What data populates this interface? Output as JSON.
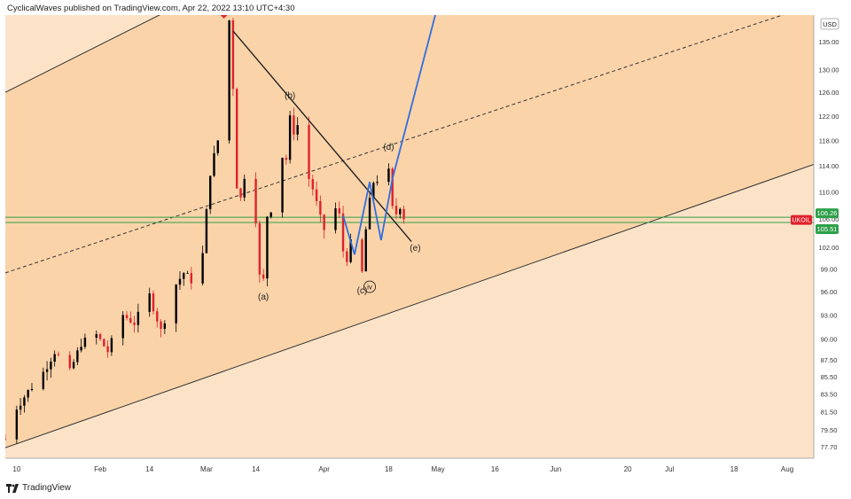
{
  "header": {
    "publisher": "CyclicalWaves published on TradingView.com, Apr 22, 2022 13:10 UTC+4:30"
  },
  "footer": {
    "brand": "TradingView"
  },
  "chart_data": {
    "type": "candlestick",
    "symbol_label": "UKOIL",
    "currency": "USD",
    "y_scale": "log",
    "ylim": [
      76.5,
      140.0
    ],
    "xlim": [
      "2022-01-07",
      "2022-08-08"
    ],
    "price_tags": {
      "upper": "106.26",
      "lower": "105.51"
    },
    "x_ticks": [
      {
        "date": "2022-01-10",
        "label": "10"
      },
      {
        "date": "2022-02-01",
        "label": "Feb"
      },
      {
        "date": "2022-02-14",
        "label": "14"
      },
      {
        "date": "2022-03-01",
        "label": "Mar"
      },
      {
        "date": "2022-03-14",
        "label": "14"
      },
      {
        "date": "2022-04-01",
        "label": "Apr"
      },
      {
        "date": "2022-04-18",
        "label": "18"
      },
      {
        "date": "2022-05-01",
        "label": "May"
      },
      {
        "date": "2022-05-16",
        "label": "16"
      },
      {
        "date": "2022-06-01",
        "label": "Jun"
      },
      {
        "date": "2022-06-20",
        "label": "20"
      },
      {
        "date": "2022-07-01",
        "label": "Jul"
      },
      {
        "date": "2022-07-18",
        "label": "18"
      },
      {
        "date": "2022-08-01",
        "label": "Aug"
      }
    ],
    "y_ticks": [
      "77.70",
      "79.50",
      "81.50",
      "83.50",
      "85.50",
      "87.50",
      "90.00",
      "93.00",
      "96.00",
      "99.00",
      "102.00",
      "106.00",
      "110.00",
      "114.00",
      "118.00",
      "122.00",
      "126.00",
      "130.00",
      "135.00"
    ],
    "price_path": [
      {
        "date": "2022-01-07",
        "price": 78.5
      },
      {
        "date": "2022-01-10",
        "price": 82.0
      },
      {
        "date": "2022-01-13",
        "price": 83.8
      },
      {
        "date": "2022-01-17",
        "price": 86.0
      },
      {
        "date": "2022-01-20",
        "price": 88.5
      },
      {
        "date": "2022-01-24",
        "price": 86.0
      },
      {
        "date": "2022-01-27",
        "price": 89.5
      },
      {
        "date": "2022-01-31",
        "price": 90.5
      },
      {
        "date": "2022-02-03",
        "price": 88.5
      },
      {
        "date": "2022-02-07",
        "price": 93.0
      },
      {
        "date": "2022-02-10",
        "price": 92.0
      },
      {
        "date": "2022-02-14",
        "price": 95.5
      },
      {
        "date": "2022-02-17",
        "price": 91.0
      },
      {
        "date": "2022-02-21",
        "price": 97.0
      },
      {
        "date": "2022-02-23",
        "price": 98.5
      },
      {
        "date": "2022-02-25",
        "price": 97.5
      },
      {
        "date": "2022-02-28",
        "price": 101.0
      },
      {
        "date": "2022-03-02",
        "price": 113.0
      },
      {
        "date": "2022-03-04",
        "price": 118.0
      },
      {
        "date": "2022-03-07",
        "price": 139.0
      },
      {
        "date": "2022-03-08",
        "price": 127.0
      },
      {
        "date": "2022-03-09",
        "price": 111.0
      },
      {
        "date": "2022-03-10",
        "price": 109.0
      },
      {
        "date": "2022-03-11",
        "price": 112.5
      },
      {
        "date": "2022-03-14",
        "price": 106.0
      },
      {
        "date": "2022-03-15",
        "price": 98.0
      },
      {
        "date": "2022-03-16",
        "price": 97.5
      },
      {
        "date": "2022-03-17",
        "price": 106.5
      },
      {
        "date": "2022-03-18",
        "price": 107.5
      },
      {
        "date": "2022-03-21",
        "price": 115.5
      },
      {
        "date": "2022-03-22",
        "price": 115.0
      },
      {
        "date": "2022-03-23",
        "price": 121.5
      },
      {
        "date": "2022-03-24",
        "price": 119.5
      },
      {
        "date": "2022-03-25",
        "price": 120.5
      },
      {
        "date": "2022-03-28",
        "price": 112.0
      },
      {
        "date": "2022-03-29",
        "price": 110.5
      },
      {
        "date": "2022-03-31",
        "price": 106.0
      },
      {
        "date": "2022-04-01",
        "price": 104.5
      },
      {
        "date": "2022-04-04",
        "price": 107.5
      },
      {
        "date": "2022-04-05",
        "price": 106.5
      },
      {
        "date": "2022-04-06",
        "price": 101.5
      },
      {
        "date": "2022-04-07",
        "price": 100.5
      },
      {
        "date": "2022-04-08",
        "price": 102.5
      },
      {
        "date": "2022-04-11",
        "price": 98.5
      },
      {
        "date": "2022-04-12",
        "price": 104.5
      },
      {
        "date": "2022-04-13",
        "price": 108.5
      },
      {
        "date": "2022-04-14",
        "price": 111.5
      },
      {
        "date": "2022-04-18",
        "price": 113.0
      },
      {
        "date": "2022-04-19",
        "price": 107.5
      },
      {
        "date": "2022-04-20",
        "price": 106.8
      },
      {
        "date": "2022-04-21",
        "price": 108.0
      },
      {
        "date": "2022-04-22",
        "price": 106.3
      }
    ],
    "annotations": [
      {
        "label": "iii",
        "circled": true,
        "date": "2022-03-07",
        "price": 141.5
      },
      {
        "label": "(b)",
        "date": "2022-03-23",
        "price": 125.0
      },
      {
        "label": "(d)",
        "date": "2022-04-18",
        "price": 116.5
      },
      {
        "label": "(a)",
        "date": "2022-03-16",
        "price": 95.0
      },
      {
        "label": "(c)",
        "date": "2022-04-11",
        "price": 95.8
      },
      {
        "label": "iv",
        "circled": true,
        "date": "2022-04-13",
        "price": 96.3
      },
      {
        "label": "(e)",
        "date": "2022-04-25",
        "price": 101.5
      }
    ],
    "lines": [
      {
        "id": "channel-upper",
        "style": "solid",
        "from": {
          "date": "2022-01-07",
          "price": 126.0
        },
        "to": {
          "date": "2022-03-10",
          "price": 148.0
        }
      },
      {
        "id": "channel-mid",
        "style": "dashed",
        "from": {
          "date": "2022-01-07",
          "price": 98.5
        },
        "to": {
          "date": "2022-08-08",
          "price": 142.0
        }
      },
      {
        "id": "channel-lower",
        "style": "solid",
        "from": {
          "date": "2022-01-07",
          "price": 77.6
        },
        "to": {
          "date": "2022-08-08",
          "price": 114.2
        }
      },
      {
        "id": "triangle-upper",
        "style": "solid",
        "from": {
          "date": "2022-03-08",
          "price": 137.0
        },
        "to": {
          "date": "2022-04-24",
          "price": 102.8
        }
      }
    ],
    "projection": [
      {
        "date": "2022-04-06",
        "price": 106.5
      },
      {
        "date": "2022-04-09",
        "price": 101.0
      },
      {
        "date": "2022-04-13",
        "price": 111.5
      },
      {
        "date": "2022-04-16",
        "price": 103.0
      },
      {
        "date": "2022-04-19",
        "price": 112.0
      },
      {
        "date": "2022-05-01",
        "price": 142.0
      }
    ],
    "horizontal_levels": [
      106.26,
      105.51
    ],
    "colors": {
      "fill_outer": "#fce3c8",
      "fill_band": "#fad3a9",
      "candle_down": "#e0212b",
      "candle_up": "#000000",
      "projection": "#2f6fe0",
      "level": "#2ea04a",
      "tag_red": "#e0212b",
      "tag_green": "#2ea04a"
    }
  }
}
